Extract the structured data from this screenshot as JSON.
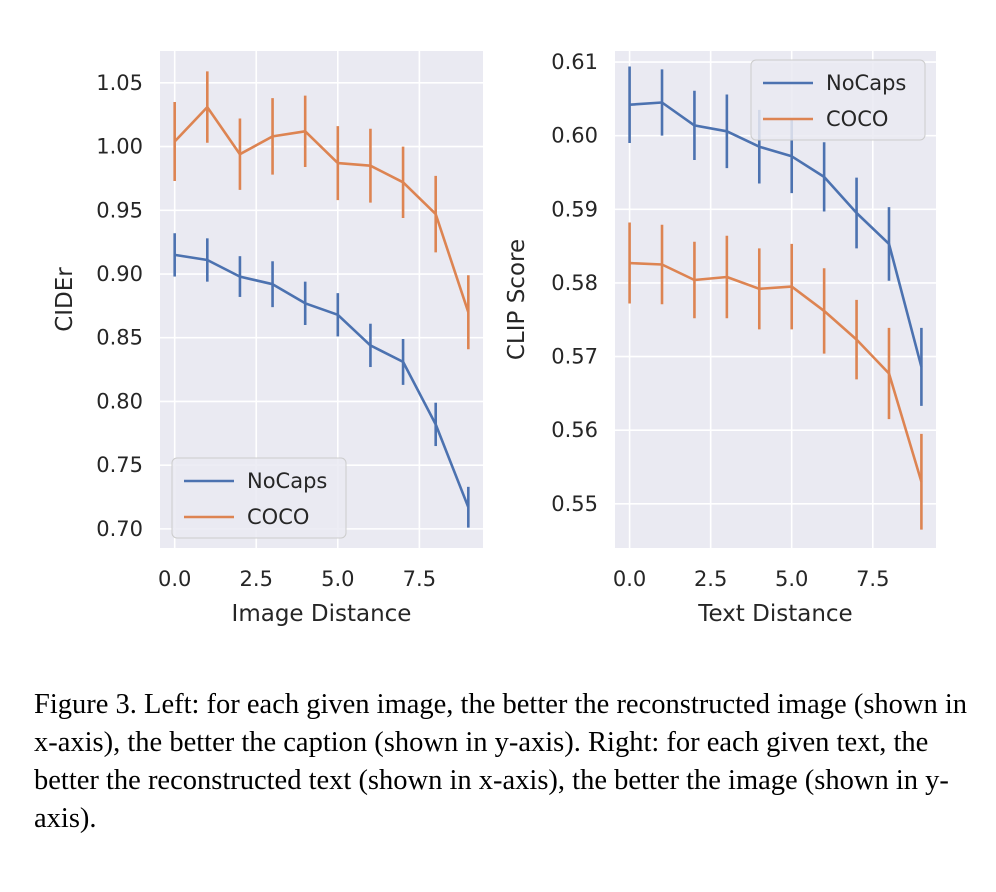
{
  "chart_data": [
    {
      "type": "line",
      "xlabel": "Image Distance",
      "ylabel": "CIDEr",
      "xlim": [
        -0.45,
        9.45
      ],
      "ylim": [
        0.685,
        1.075
      ],
      "xticks": [
        0,
        2.5,
        5,
        7.5
      ],
      "xtick_labels": [
        "0.0",
        "2.5",
        "5.0",
        "7.5"
      ],
      "yticks": [
        0.7,
        0.75,
        0.8,
        0.85,
        0.9,
        0.95,
        1.0,
        1.05
      ],
      "ytick_labels": [
        "0.70",
        "0.75",
        "0.80",
        "0.85",
        "0.90",
        "0.95",
        "1.00",
        "1.05"
      ],
      "grid": true,
      "legend_position": "lower-left",
      "x": [
        0,
        1,
        2,
        3,
        4,
        5,
        6,
        7,
        8,
        9
      ],
      "series": [
        {
          "name": "NoCaps",
          "color": "#4c72b0",
          "values": [
            0.915,
            0.911,
            0.898,
            0.892,
            0.877,
            0.868,
            0.844,
            0.831,
            0.782,
            0.717
          ],
          "error": [
            0.017,
            0.017,
            0.016,
            0.018,
            0.017,
            0.017,
            0.017,
            0.018,
            0.017,
            0.016
          ]
        },
        {
          "name": "COCO",
          "color": "#dd8452",
          "values": [
            1.004,
            1.031,
            0.994,
            1.008,
            1.012,
            0.987,
            0.985,
            0.972,
            0.947,
            0.87
          ],
          "error": [
            0.031,
            0.028,
            0.028,
            0.03,
            0.028,
            0.029,
            0.029,
            0.028,
            0.03,
            0.029
          ]
        }
      ]
    },
    {
      "type": "line",
      "xlabel": "Text Distance",
      "ylabel": "CLIP Score",
      "xlim": [
        -0.45,
        9.45
      ],
      "ylim": [
        0.544,
        0.6115
      ],
      "xticks": [
        0,
        2.5,
        5,
        7.5
      ],
      "xtick_labels": [
        "0.0",
        "2.5",
        "5.0",
        "7.5"
      ],
      "yticks": [
        0.55,
        0.56,
        0.57,
        0.58,
        0.59,
        0.6,
        0.61
      ],
      "ytick_labels": [
        "0.55",
        "0.56",
        "0.57",
        "0.58",
        "0.59",
        "0.60",
        "0.61"
      ],
      "grid": true,
      "legend_position": "top-right",
      "x": [
        0,
        1,
        2,
        3,
        4,
        5,
        6,
        7,
        8,
        9
      ],
      "series": [
        {
          "name": "NoCaps",
          "color": "#4c72b0",
          "values": [
            0.6042,
            0.6045,
            0.6014,
            0.6006,
            0.5985,
            0.5972,
            0.5944,
            0.5895,
            0.5853,
            0.5686
          ],
          "error": [
            0.0052,
            0.0045,
            0.0047,
            0.005,
            0.005,
            0.005,
            0.0047,
            0.0048,
            0.005,
            0.0053
          ]
        },
        {
          "name": "COCO",
          "color": "#dd8452",
          "values": [
            0.5827,
            0.5825,
            0.5804,
            0.5808,
            0.5792,
            0.5795,
            0.5762,
            0.5723,
            0.5677,
            0.553
          ],
          "error": [
            0.0055,
            0.0054,
            0.0052,
            0.0056,
            0.0055,
            0.0058,
            0.0058,
            0.0054,
            0.0062,
            0.0065
          ]
        }
      ]
    }
  ],
  "caption": "Figure 3. Left: for each given image, the better the reconstructed image (shown in x-axis), the better the caption (shown in y-axis). Right: for each given text, the better the reconstructed text (shown in x-axis), the better the image (shown in y-axis)."
}
